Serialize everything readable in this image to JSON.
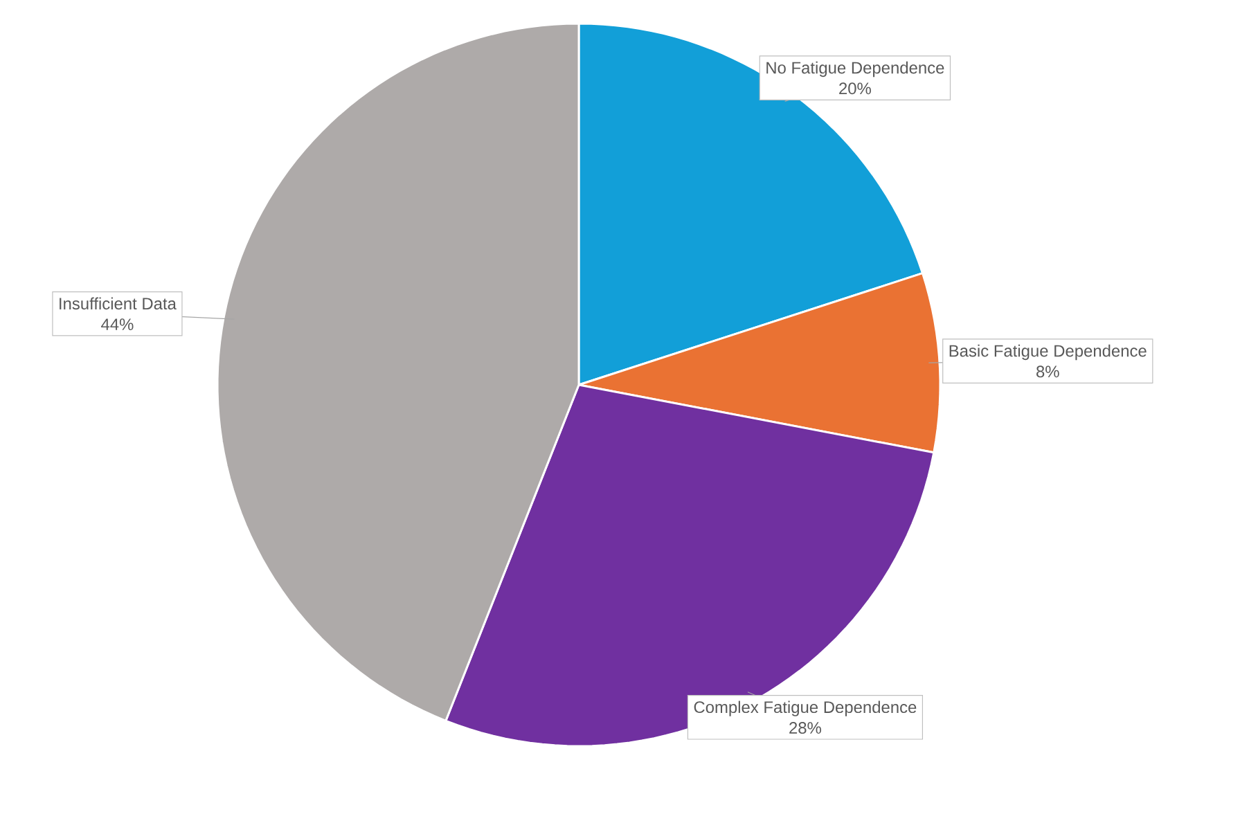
{
  "chart_data": {
    "type": "pie",
    "categories": [
      "No Fatigue Dependence",
      "Basic Fatigue Dependence",
      "Complex Fatigue Dependence",
      "Insufficient Data"
    ],
    "values": [
      20,
      8,
      28,
      44
    ],
    "colors": [
      "#129fd8",
      "#ea7233",
      "#7030a0",
      "#aeaaa9"
    ],
    "value_labels": [
      "20%",
      "8%",
      "28%",
      "44%"
    ]
  }
}
